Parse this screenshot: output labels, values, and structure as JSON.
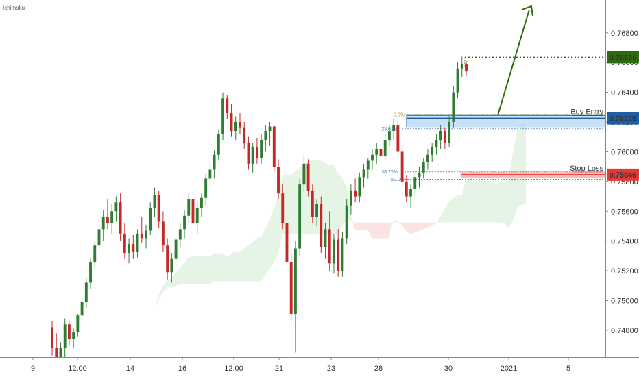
{
  "indicator_label": "Ichimoku",
  "colors": {
    "bull": "#2e7d32",
    "bear": "#c62828",
    "entry": "#1c5fa8",
    "entry_fill": "#bcd9f5",
    "stop": "#e53935",
    "stop_fill": "#f7b4b4",
    "target": "#2e6b0f",
    "cloud_bull": "#e6f4e6",
    "cloud_bear": "#fbe3e3",
    "fib": "#4a7bbf",
    "axis_line": "#888888"
  },
  "chart_data": {
    "type": "candlestick",
    "y_axis": {
      "ticks": [
        "0.76800",
        "0.76600",
        "0.76400",
        "0.76200",
        "0.76000",
        "0.75800",
        "0.75600",
        "0.75400",
        "0.75200",
        "0.75000",
        "0.74800"
      ],
      "range": [
        0.7462,
        0.7702
      ]
    },
    "x_axis": {
      "ticks": [
        "9",
        "12:00",
        "14",
        "16",
        "12:00",
        "21",
        "23",
        "28",
        "30",
        "2021",
        "5"
      ]
    },
    "levels": {
      "target": {
        "value": 0.76636,
        "label": "0.76636"
      },
      "entry": {
        "value": 0.76225,
        "label": "0.76225",
        "name": "Buy Entry"
      },
      "stop": {
        "value": 0.75846,
        "label": "0.75846",
        "name": "Stop Loss"
      }
    },
    "fib_labels": [
      "0.0%",
      "23.60%",
      "38.20%",
      "50.0%"
    ],
    "candles": [
      [
        0.7482,
        0.7486,
        0.7463,
        0.7468
      ],
      [
        0.7468,
        0.7478,
        0.7455,
        0.7462
      ],
      [
        0.7462,
        0.7472,
        0.745,
        0.7468
      ],
      [
        0.7468,
        0.7488,
        0.7462,
        0.7484
      ],
      [
        0.7484,
        0.7486,
        0.747,
        0.7474
      ],
      [
        0.7474,
        0.7481,
        0.7468,
        0.7479
      ],
      [
        0.7479,
        0.7491,
        0.7476,
        0.749
      ],
      [
        0.749,
        0.7502,
        0.7486,
        0.7499
      ],
      [
        0.7499,
        0.7515,
        0.7495,
        0.7512
      ],
      [
        0.7512,
        0.7528,
        0.7508,
        0.7526
      ],
      [
        0.7526,
        0.754,
        0.7522,
        0.7537
      ],
      [
        0.7537,
        0.7552,
        0.753,
        0.7548
      ],
      [
        0.7548,
        0.7561,
        0.754,
        0.7556
      ],
      [
        0.7556,
        0.7568,
        0.7548,
        0.7552
      ],
      [
        0.7552,
        0.7565,
        0.7545,
        0.756
      ],
      [
        0.756,
        0.757,
        0.7553,
        0.7566
      ],
      [
        0.7566,
        0.7572,
        0.754,
        0.7545
      ],
      [
        0.7545,
        0.7552,
        0.7528,
        0.7532
      ],
      [
        0.7532,
        0.7542,
        0.7525,
        0.7538
      ],
      [
        0.7538,
        0.7544,
        0.7528,
        0.7533
      ],
      [
        0.7533,
        0.7548,
        0.7529,
        0.7545
      ],
      [
        0.7545,
        0.7556,
        0.7539,
        0.7542
      ],
      [
        0.7542,
        0.7551,
        0.7535,
        0.7547
      ],
      [
        0.7547,
        0.7566,
        0.7544,
        0.7562
      ],
      [
        0.7562,
        0.7576,
        0.7556,
        0.7571
      ],
      [
        0.7571,
        0.7574,
        0.7549,
        0.7553
      ],
      [
        0.7553,
        0.756,
        0.7533,
        0.7537
      ],
      [
        0.7537,
        0.7542,
        0.7514,
        0.7519
      ],
      [
        0.7519,
        0.7532,
        0.7512,
        0.7528
      ],
      [
        0.7528,
        0.7545,
        0.7522,
        0.7541
      ],
      [
        0.7541,
        0.7552,
        0.7536,
        0.7548
      ],
      [
        0.7548,
        0.7561,
        0.7542,
        0.7557
      ],
      [
        0.7557,
        0.7572,
        0.7552,
        0.7568
      ],
      [
        0.7568,
        0.7572,
        0.7548,
        0.7552
      ],
      [
        0.7552,
        0.7566,
        0.7545,
        0.7562
      ],
      [
        0.7562,
        0.7572,
        0.7556,
        0.7569
      ],
      [
        0.7569,
        0.7585,
        0.7564,
        0.7582
      ],
      [
        0.7582,
        0.7592,
        0.7576,
        0.7588
      ],
      [
        0.7588,
        0.7601,
        0.7582,
        0.7598
      ],
      [
        0.7598,
        0.7615,
        0.7594,
        0.7612
      ],
      [
        0.7612,
        0.764,
        0.7608,
        0.7636
      ],
      [
        0.7636,
        0.7638,
        0.7622,
        0.7626
      ],
      [
        0.7626,
        0.7632,
        0.761,
        0.7614
      ],
      [
        0.7614,
        0.7624,
        0.7608,
        0.762
      ],
      [
        0.762,
        0.7626,
        0.7612,
        0.7616
      ],
      [
        0.7616,
        0.762,
        0.7602,
        0.7606
      ],
      [
        0.7606,
        0.761,
        0.7588,
        0.7592
      ],
      [
        0.7592,
        0.7606,
        0.7586,
        0.7603
      ],
      [
        0.7603,
        0.7609,
        0.7592,
        0.7596
      ],
      [
        0.7596,
        0.7612,
        0.7592,
        0.7608
      ],
      [
        0.7608,
        0.7618,
        0.76,
        0.7614
      ],
      [
        0.7614,
        0.762,
        0.7604,
        0.7617
      ],
      [
        0.7617,
        0.7618,
        0.7586,
        0.759
      ],
      [
        0.759,
        0.7595,
        0.7568,
        0.7572
      ],
      [
        0.7572,
        0.7578,
        0.7548,
        0.7552
      ],
      [
        0.7552,
        0.7558,
        0.7522,
        0.7526
      ],
      [
        0.7526,
        0.7531,
        0.7486,
        0.7491
      ],
      [
        0.7491,
        0.754,
        0.7465,
        0.7535
      ],
      [
        0.7535,
        0.7582,
        0.753,
        0.7578
      ],
      [
        0.7578,
        0.7598,
        0.7572,
        0.7592
      ],
      [
        0.7592,
        0.7595,
        0.757,
        0.7574
      ],
      [
        0.7574,
        0.7578,
        0.7552,
        0.7556
      ],
      [
        0.7556,
        0.7568,
        0.755,
        0.7565
      ],
      [
        0.7565,
        0.757,
        0.7532,
        0.7536
      ],
      [
        0.7536,
        0.7552,
        0.7528,
        0.7548
      ],
      [
        0.7548,
        0.756,
        0.752,
        0.7525
      ],
      [
        0.7525,
        0.7545,
        0.7518,
        0.7541
      ],
      [
        0.7541,
        0.7548,
        0.7516,
        0.752
      ],
      [
        0.752,
        0.7546,
        0.7516,
        0.7542
      ],
      [
        0.7542,
        0.7568,
        0.7538,
        0.7564
      ],
      [
        0.7564,
        0.7578,
        0.7558,
        0.7574
      ],
      [
        0.7574,
        0.7582,
        0.7566,
        0.757
      ],
      [
        0.757,
        0.7586,
        0.7566,
        0.7583
      ],
      [
        0.7583,
        0.7592,
        0.7576,
        0.7588
      ],
      [
        0.7588,
        0.7596,
        0.7582,
        0.7594
      ],
      [
        0.7594,
        0.7602,
        0.7588,
        0.7598
      ],
      [
        0.7598,
        0.7606,
        0.7592,
        0.7602
      ],
      [
        0.7602,
        0.7604,
        0.7592,
        0.7597
      ],
      [
        0.7597,
        0.7612,
        0.7594,
        0.7608
      ],
      [
        0.7608,
        0.7618,
        0.7604,
        0.7614
      ],
      [
        0.7614,
        0.7622,
        0.7608,
        0.7618
      ],
      [
        0.7618,
        0.7622,
        0.7596,
        0.76
      ],
      [
        0.76,
        0.7606,
        0.7576,
        0.758
      ],
      [
        0.758,
        0.7584,
        0.7566,
        0.757
      ],
      [
        0.757,
        0.7578,
        0.7562,
        0.7575
      ],
      [
        0.7575,
        0.7586,
        0.757,
        0.7583
      ],
      [
        0.7583,
        0.759,
        0.7576,
        0.7586
      ],
      [
        0.7586,
        0.7596,
        0.7582,
        0.7593
      ],
      [
        0.7593,
        0.7602,
        0.7588,
        0.7598
      ],
      [
        0.7598,
        0.7606,
        0.7593,
        0.7603
      ],
      [
        0.7603,
        0.7612,
        0.7598,
        0.7608
      ],
      [
        0.7608,
        0.7618,
        0.7602,
        0.7614
      ],
      [
        0.7614,
        0.7616,
        0.7602,
        0.7606
      ],
      [
        0.7606,
        0.7624,
        0.7603,
        0.762
      ],
      [
        0.762,
        0.7644,
        0.7616,
        0.764
      ],
      [
        0.764,
        0.766,
        0.7636,
        0.7656
      ],
      [
        0.7656,
        0.7664,
        0.765,
        0.7659
      ],
      [
        0.7659,
        0.7661,
        0.7651,
        0.7654
      ]
    ]
  }
}
